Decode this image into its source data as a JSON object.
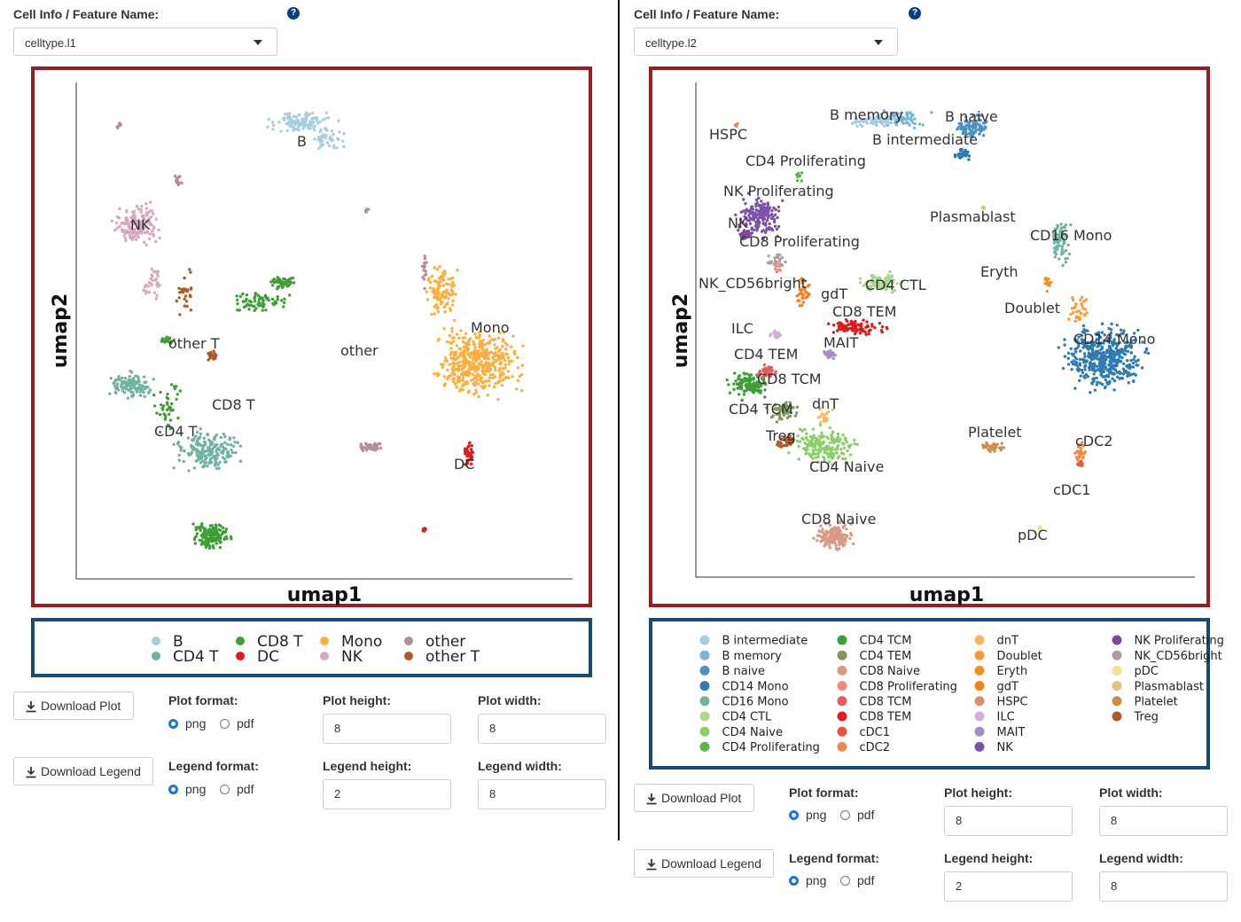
{
  "colors": {
    "plot_border": "#9e1c1f",
    "legend_border": "#144a73",
    "help_icon": "#0a3a8c",
    "radio_selected": "#1a73e8"
  },
  "left": {
    "field_label": "Cell Info / Feature Name:",
    "help_icon": "question-mark-icon",
    "select_value": "celltype.l1",
    "plot": {
      "xlabel": "umap1",
      "ylabel": "umap2",
      "cluster_labels": [
        "B",
        "NK",
        "other T",
        "other",
        "Mono",
        "CD8 T",
        "CD4 T",
        "DC"
      ]
    },
    "legend": [
      {
        "name": "B",
        "color": "#a6cee3"
      },
      {
        "name": "CD4 T",
        "color": "#6fb3a0"
      },
      {
        "name": "CD8 T",
        "color": "#3e9f37"
      },
      {
        "name": "DC",
        "color": "#e31a1c"
      },
      {
        "name": "Mono",
        "color": "#fdae3f"
      },
      {
        "name": "NK",
        "color": "#d8a8bd"
      },
      {
        "name": "other",
        "color": "#b38d99"
      },
      {
        "name": "other T",
        "color": "#b05a28"
      }
    ],
    "controls": {
      "download_plot": "Download Plot",
      "download_legend": "Download Legend",
      "plot_format_label": "Plot format:",
      "legend_format_label": "Legend format:",
      "plot_height_label": "Plot height:",
      "plot_width_label": "Plot width:",
      "legend_height_label": "Legend height:",
      "legend_width_label": "Legend width:",
      "opt_png": "png",
      "opt_pdf": "pdf",
      "plot_format_selected": "png",
      "legend_format_selected": "png",
      "plot_height": "8",
      "plot_width": "8",
      "legend_height": "2",
      "legend_width": "8"
    }
  },
  "right": {
    "field_label": "Cell Info / Feature Name:",
    "help_icon": "question-mark-icon",
    "select_value": "celltype.l2",
    "plot": {
      "xlabel": "umap1",
      "ylabel": "umap2",
      "cluster_labels": [
        "B memory",
        "B naive",
        "B intermediate",
        "HSPC",
        "CD4 Proliferating",
        "NK Proliferating",
        "NK",
        "CD8 Proliferating",
        "Plasmablast",
        "CD16 Mono",
        "Eryth",
        "NK_CD56bright",
        "gdT",
        "CD4 CTL",
        "CD8 TEM",
        "Doublet",
        "ILC",
        "MAIT",
        "CD14 Mono",
        "CD4 TEM",
        "CD8 TCM",
        "dnT",
        "CD4 TCM",
        "Treg",
        "Platelet",
        "cDC2",
        "CD4 Naive",
        "cDC1",
        "CD8 Naive",
        "pDC"
      ]
    },
    "legend": [
      {
        "name": "B intermediate",
        "color": "#a6cee3"
      },
      {
        "name": "B memory",
        "color": "#7bb4d6"
      },
      {
        "name": "B naive",
        "color": "#4a90c2"
      },
      {
        "name": "CD14 Mono",
        "color": "#2f7bb1"
      },
      {
        "name": "CD16 Mono",
        "color": "#6fb3a0"
      },
      {
        "name": "CD4 CTL",
        "color": "#a9d98b"
      },
      {
        "name": "CD4 Naive",
        "color": "#8ccf6a"
      },
      {
        "name": "CD4 Proliferating",
        "color": "#5ab849"
      },
      {
        "name": "CD4 TCM",
        "color": "#3e9f37"
      },
      {
        "name": "CD4 TEM",
        "color": "#7d9a5a"
      },
      {
        "name": "CD8 Naive",
        "color": "#d99880"
      },
      {
        "name": "CD8 Proliferating",
        "color": "#f08a7a"
      },
      {
        "name": "CD8 TCM",
        "color": "#ea5a5a"
      },
      {
        "name": "CD8 TEM",
        "color": "#e31a1c"
      },
      {
        "name": "cDC1",
        "color": "#e8533a"
      },
      {
        "name": "cDC2",
        "color": "#f4884a"
      },
      {
        "name": "dnT",
        "color": "#fdb55c"
      },
      {
        "name": "Doublet",
        "color": "#fd9a36"
      },
      {
        "name": "Eryth",
        "color": "#f98d1f"
      },
      {
        "name": "gdT",
        "color": "#f68118"
      },
      {
        "name": "HSPC",
        "color": "#d9906a"
      },
      {
        "name": "ILC",
        "color": "#d2b0d8"
      },
      {
        "name": "MAIT",
        "color": "#a98bc8"
      },
      {
        "name": "NK",
        "color": "#7a52a8"
      },
      {
        "name": "NK Proliferating",
        "color": "#7a4a9a"
      },
      {
        "name": "NK_CD56bright",
        "color": "#b39b9e"
      },
      {
        "name": "pDC",
        "color": "#f2e08a"
      },
      {
        "name": "Plasmablast",
        "color": "#e2c080"
      },
      {
        "name": "Platelet",
        "color": "#c99048"
      },
      {
        "name": "Treg",
        "color": "#b05a28"
      }
    ],
    "controls": {
      "download_plot": "Download Plot",
      "download_legend": "Download Legend",
      "plot_format_label": "Plot format:",
      "legend_format_label": "Legend format:",
      "plot_height_label": "Plot height:",
      "plot_width_label": "Plot width:",
      "legend_height_label": "Legend height:",
      "legend_width_label": "Legend width:",
      "opt_png": "png",
      "opt_pdf": "pdf",
      "plot_format_selected": "png",
      "legend_format_selected": "png",
      "plot_height": "8",
      "plot_width": "8",
      "legend_height": "2",
      "legend_width": "8"
    }
  }
}
